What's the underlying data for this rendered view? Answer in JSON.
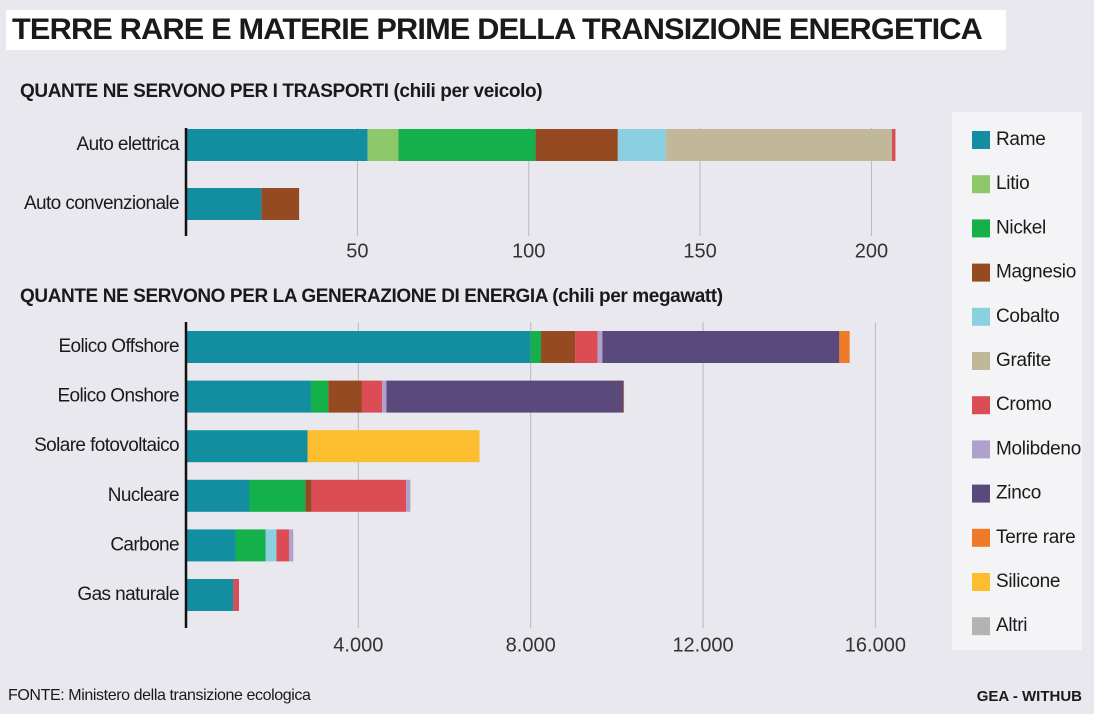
{
  "title": "TERRE RARE E MATERIE PRIME DELLA TRANSIZIONE ENERGETICA",
  "source": "FONTE: Ministero della transizione ecologica",
  "credit": "GEA - WITHUB",
  "legend": [
    {
      "name": "Rame",
      "color": "#138ea0"
    },
    {
      "name": "Litio",
      "color": "#8dc96a"
    },
    {
      "name": "Nickel",
      "color": "#14b04a"
    },
    {
      "name": "Magnesio",
      "color": "#954a22"
    },
    {
      "name": "Cobalto",
      "color": "#8ad0e0"
    },
    {
      "name": "Grafite",
      "color": "#c0b898"
    },
    {
      "name": "Cromo",
      "color": "#dc4c55"
    },
    {
      "name": "Molibdeno",
      "color": "#b0a0cc"
    },
    {
      "name": "Zinco",
      "color": "#5a4a7c"
    },
    {
      "name": "Terre rare",
      "color": "#ef7b28"
    },
    {
      "name": "Silicone",
      "color": "#fcbd2e"
    },
    {
      "name": "Altri",
      "color": "#b3b3b3"
    }
  ],
  "chart_data": [
    {
      "type": "stacked-bar-horizontal",
      "subtitle": "QUANTE NE SERVONO PER I TRASPORTI (chili per veicolo)",
      "categories": [
        "Auto elettrica",
        "Auto convenzionale"
      ],
      "series": [
        {
          "name": "Rame",
          "color": "#138ea0",
          "values": [
            53,
            22
          ]
        },
        {
          "name": "Litio",
          "color": "#8dc96a",
          "values": [
            9,
            null
          ]
        },
        {
          "name": "Nickel",
          "color": "#14b04a",
          "values": [
            40,
            null
          ]
        },
        {
          "name": "Magnesio",
          "color": "#954a22",
          "values": [
            24,
            11
          ]
        },
        {
          "name": "Cobalto",
          "color": "#8ad0e0",
          "values": [
            14,
            null
          ]
        },
        {
          "name": "Grafite",
          "color": "#c0b898",
          "values": [
            66,
            null
          ]
        },
        {
          "name": "Cromo",
          "color": "#dc4c55",
          "values": [
            1,
            null
          ]
        }
      ],
      "xlim": [
        0,
        220
      ],
      "xticks": [
        50,
        100,
        150,
        200
      ],
      "grid": true
    },
    {
      "type": "stacked-bar-horizontal",
      "subtitle": "QUANTE NE SERVONO PER LA GENERAZIONE DI ENERGIA (chili per megawatt)",
      "categories": [
        "Eolico Offshore",
        "Eolico Onshore",
        "Solare fotovoltaico",
        "Nucleare",
        "Carbone",
        "Gas naturale"
      ],
      "series": [
        {
          "name": "Rame",
          "color": "#138ea0",
          "values": [
            8000,
            2900,
            2822,
            1473,
            1150,
            1100
          ]
        },
        {
          "name": "Nickel",
          "color": "#14b04a",
          "values": [
            240,
            404,
            null,
            1297,
            700,
            null
          ]
        },
        {
          "name": "Magnesio",
          "color": "#954a22",
          "values": [
            790,
            780,
            null,
            148,
            null,
            null
          ]
        },
        {
          "name": "Cobalto",
          "color": "#8ad0e0",
          "values": [
            null,
            null,
            null,
            null,
            250,
            null
          ]
        },
        {
          "name": "Cromo",
          "color": "#dc4c55",
          "values": [
            525,
            470,
            null,
            2190,
            290,
            130
          ]
        },
        {
          "name": "Molibdeno",
          "color": "#b0a0cc",
          "values": [
            109,
            99,
            null,
            100,
            100,
            null
          ]
        },
        {
          "name": "Zinco",
          "color": "#5a4a7c",
          "values": [
            5500,
            5500,
            null,
            null,
            null,
            null
          ]
        },
        {
          "name": "Terre rare",
          "color": "#ef7b28",
          "values": [
            239,
            14,
            null,
            null,
            null,
            null
          ]
        },
        {
          "name": "Silicone",
          "color": "#fcbd2e",
          "values": [
            null,
            null,
            3990,
            null,
            null,
            null
          ]
        }
      ],
      "xlim": [
        0,
        17500
      ],
      "xticks": [
        {
          "value": 4000,
          "label": "4.000"
        },
        {
          "value": 8000,
          "label": "8.000"
        },
        {
          "value": 12000,
          "label": "12.000"
        },
        {
          "value": 16000,
          "label": "16.000"
        }
      ],
      "grid": true
    }
  ]
}
